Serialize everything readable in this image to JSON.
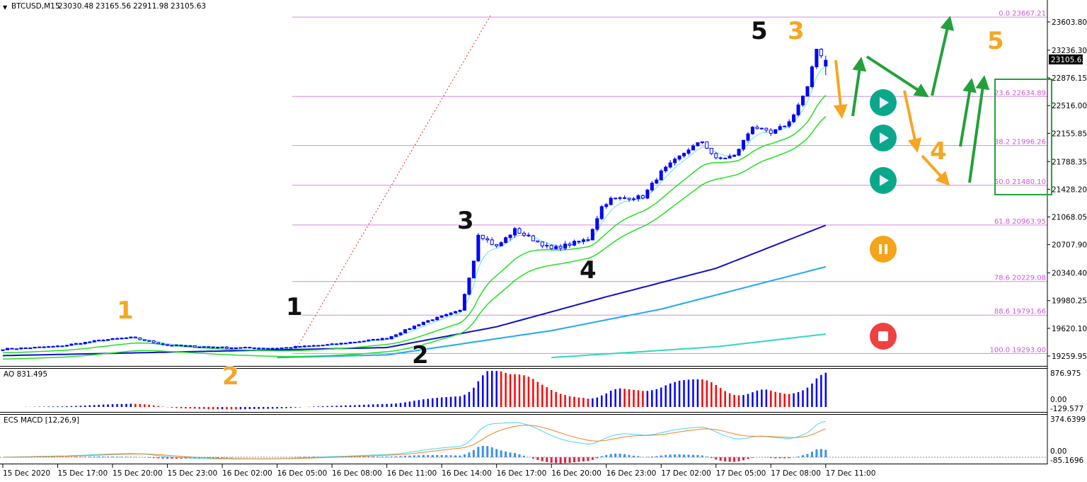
{
  "header": {
    "symbol": "BTCUSD,M15",
    "open": "23030.48",
    "high": "23165.56",
    "low": "22911.98",
    "close": "23105.63"
  },
  "price_axis": {
    "ticks": [
      "23603.80",
      "23236.30",
      "22876.15",
      "22516.00",
      "22155.85",
      "21788.35",
      "21428.20",
      "21068.05",
      "20707.90",
      "20340.40",
      "19980.25",
      "19620.10",
      "19259.95"
    ],
    "current_price": "23105.63"
  },
  "time_axis": {
    "ticks": [
      "15 Dec 2020",
      "15 Dec 17:00",
      "15 Dec 20:00",
      "15 Dec 23:00",
      "16 Dec 02:00",
      "16 Dec 05:00",
      "16 Dec 08:00",
      "16 Dec 11:00",
      "16 Dec 14:00",
      "16 Dec 17:00",
      "16 Dec 20:00",
      "16 Dec 23:00",
      "17 Dec 02:00",
      "17 Dec 05:00",
      "17 Dec 08:00",
      "17 Dec 11:00"
    ]
  },
  "fibonacci": [
    {
      "label": "0.0 23667.21",
      "price": 23667.21
    },
    {
      "label": "23.6 22634.89",
      "price": 22634.89
    },
    {
      "label": "38.2 21996.26",
      "price": 21996.26
    },
    {
      "label": "50.0 21480.10",
      "price": 21480.1
    },
    {
      "label": "61.8 20963.95",
      "price": 20963.95
    },
    {
      "label": "78.6 20229.08",
      "price": 20229.08
    },
    {
      "label": "88.6 19791.66",
      "price": 19791.66
    },
    {
      "label": "100.0 19293.00",
      "price": 19293.0
    }
  ],
  "ao_panel": {
    "title": "AO 831.495",
    "axis_max": "876.975",
    "axis_zero": "0.00",
    "axis_min": "-129.577"
  },
  "macd_panel": {
    "title": "ECS MACD [12,26,9]",
    "axis_max": "374.6399",
    "axis_zero": "0.00",
    "axis_min": "-85.1696"
  },
  "wave_labels": {
    "orange": [
      "1",
      "2",
      "3",
      "4",
      "5"
    ],
    "black": [
      "1",
      "2",
      "3",
      "4",
      "5"
    ]
  },
  "colors": {
    "bull": "#0000ff",
    "bear": "#ff0000",
    "fib": "#d58ae0",
    "arrow_up": "#22a03a",
    "arrow_down": "#f5a623",
    "play": "#0aa88a",
    "pause": "#f5a31a",
    "stop": "#f04040"
  },
  "icons": [
    "play-icon",
    "play-icon",
    "play-icon",
    "pause-icon",
    "stop-icon"
  ],
  "chart_data": {
    "type": "candlestick",
    "symbol": "BTCUSD",
    "timeframe": "M15",
    "ylim": [
      19259.95,
      23667.21
    ],
    "close_path": [
      [
        "15 Dec 14:00",
        19350
      ],
      [
        "15 Dec 17:00",
        19385
      ],
      [
        "15 Dec 19:30",
        19470
      ],
      [
        "15 Dec 21:00",
        19500
      ],
      [
        "15 Dec 23:00",
        19400
      ],
      [
        "16 Dec 02:00",
        19370
      ],
      [
        "16 Dec 05:00",
        19360
      ],
      [
        "16 Dec 08:00",
        19410
      ],
      [
        "16 Dec 11:00",
        19490
      ],
      [
        "16 Dec 13:00",
        19700
      ],
      [
        "16 Dec 15:00",
        19850
      ],
      [
        "16 Dec 15:45",
        20500
      ],
      [
        "16 Dec 16:00",
        20850
      ],
      [
        "16 Dec 17:00",
        20680
      ],
      [
        "16 Dec 18:00",
        20900
      ],
      [
        "16 Dec 20:00",
        20650
      ],
      [
        "16 Dec 22:00",
        20780
      ],
      [
        "16 Dec 22:45",
        21200
      ],
      [
        "16 Dec 23:15",
        21300
      ],
      [
        "17 Dec 01:00",
        21330
      ],
      [
        "17 Dec 02:00",
        21650
      ],
      [
        "17 Dec 03:30",
        21950
      ],
      [
        "17 Dec 04:15",
        22050
      ],
      [
        "17 Dec 05:00",
        21820
      ],
      [
        "17 Dec 06:00",
        21860
      ],
      [
        "17 Dec 07:00",
        22250
      ],
      [
        "17 Dec 08:00",
        22150
      ],
      [
        "17 Dec 09:00",
        22300
      ],
      [
        "17 Dec 10:00",
        22750
      ],
      [
        "17 Dec 10:30",
        23250
      ],
      [
        "17 Dec 11:00",
        23105.63
      ]
    ],
    "moving_averages": [
      {
        "color": "#1010c8",
        "points": [
          [
            "15 Dec 14:00",
            19265
          ],
          [
            "16 Dec 11:00",
            19370
          ],
          [
            "16 Dec 17:00",
            19640
          ],
          [
            "16 Dec 23:00",
            20030
          ],
          [
            "17 Dec 05:00",
            20400
          ],
          [
            "17 Dec 11:00",
            20960
          ]
        ]
      },
      {
        "color": "#1ea8f0",
        "points": [
          [
            "16 Dec 05:00",
            19240
          ],
          [
            "16 Dec 11:00",
            19275
          ],
          [
            "16 Dec 20:00",
            19590
          ],
          [
            "17 Dec 02:00",
            19870
          ],
          [
            "17 Dec 11:00",
            20420
          ]
        ]
      },
      {
        "color": "#30d8c0",
        "points": [
          [
            "16 Dec 20:00",
            19240
          ],
          [
            "17 Dec 05:00",
            19380
          ],
          [
            "17 Dec 11:00",
            19545
          ]
        ]
      }
    ]
  }
}
